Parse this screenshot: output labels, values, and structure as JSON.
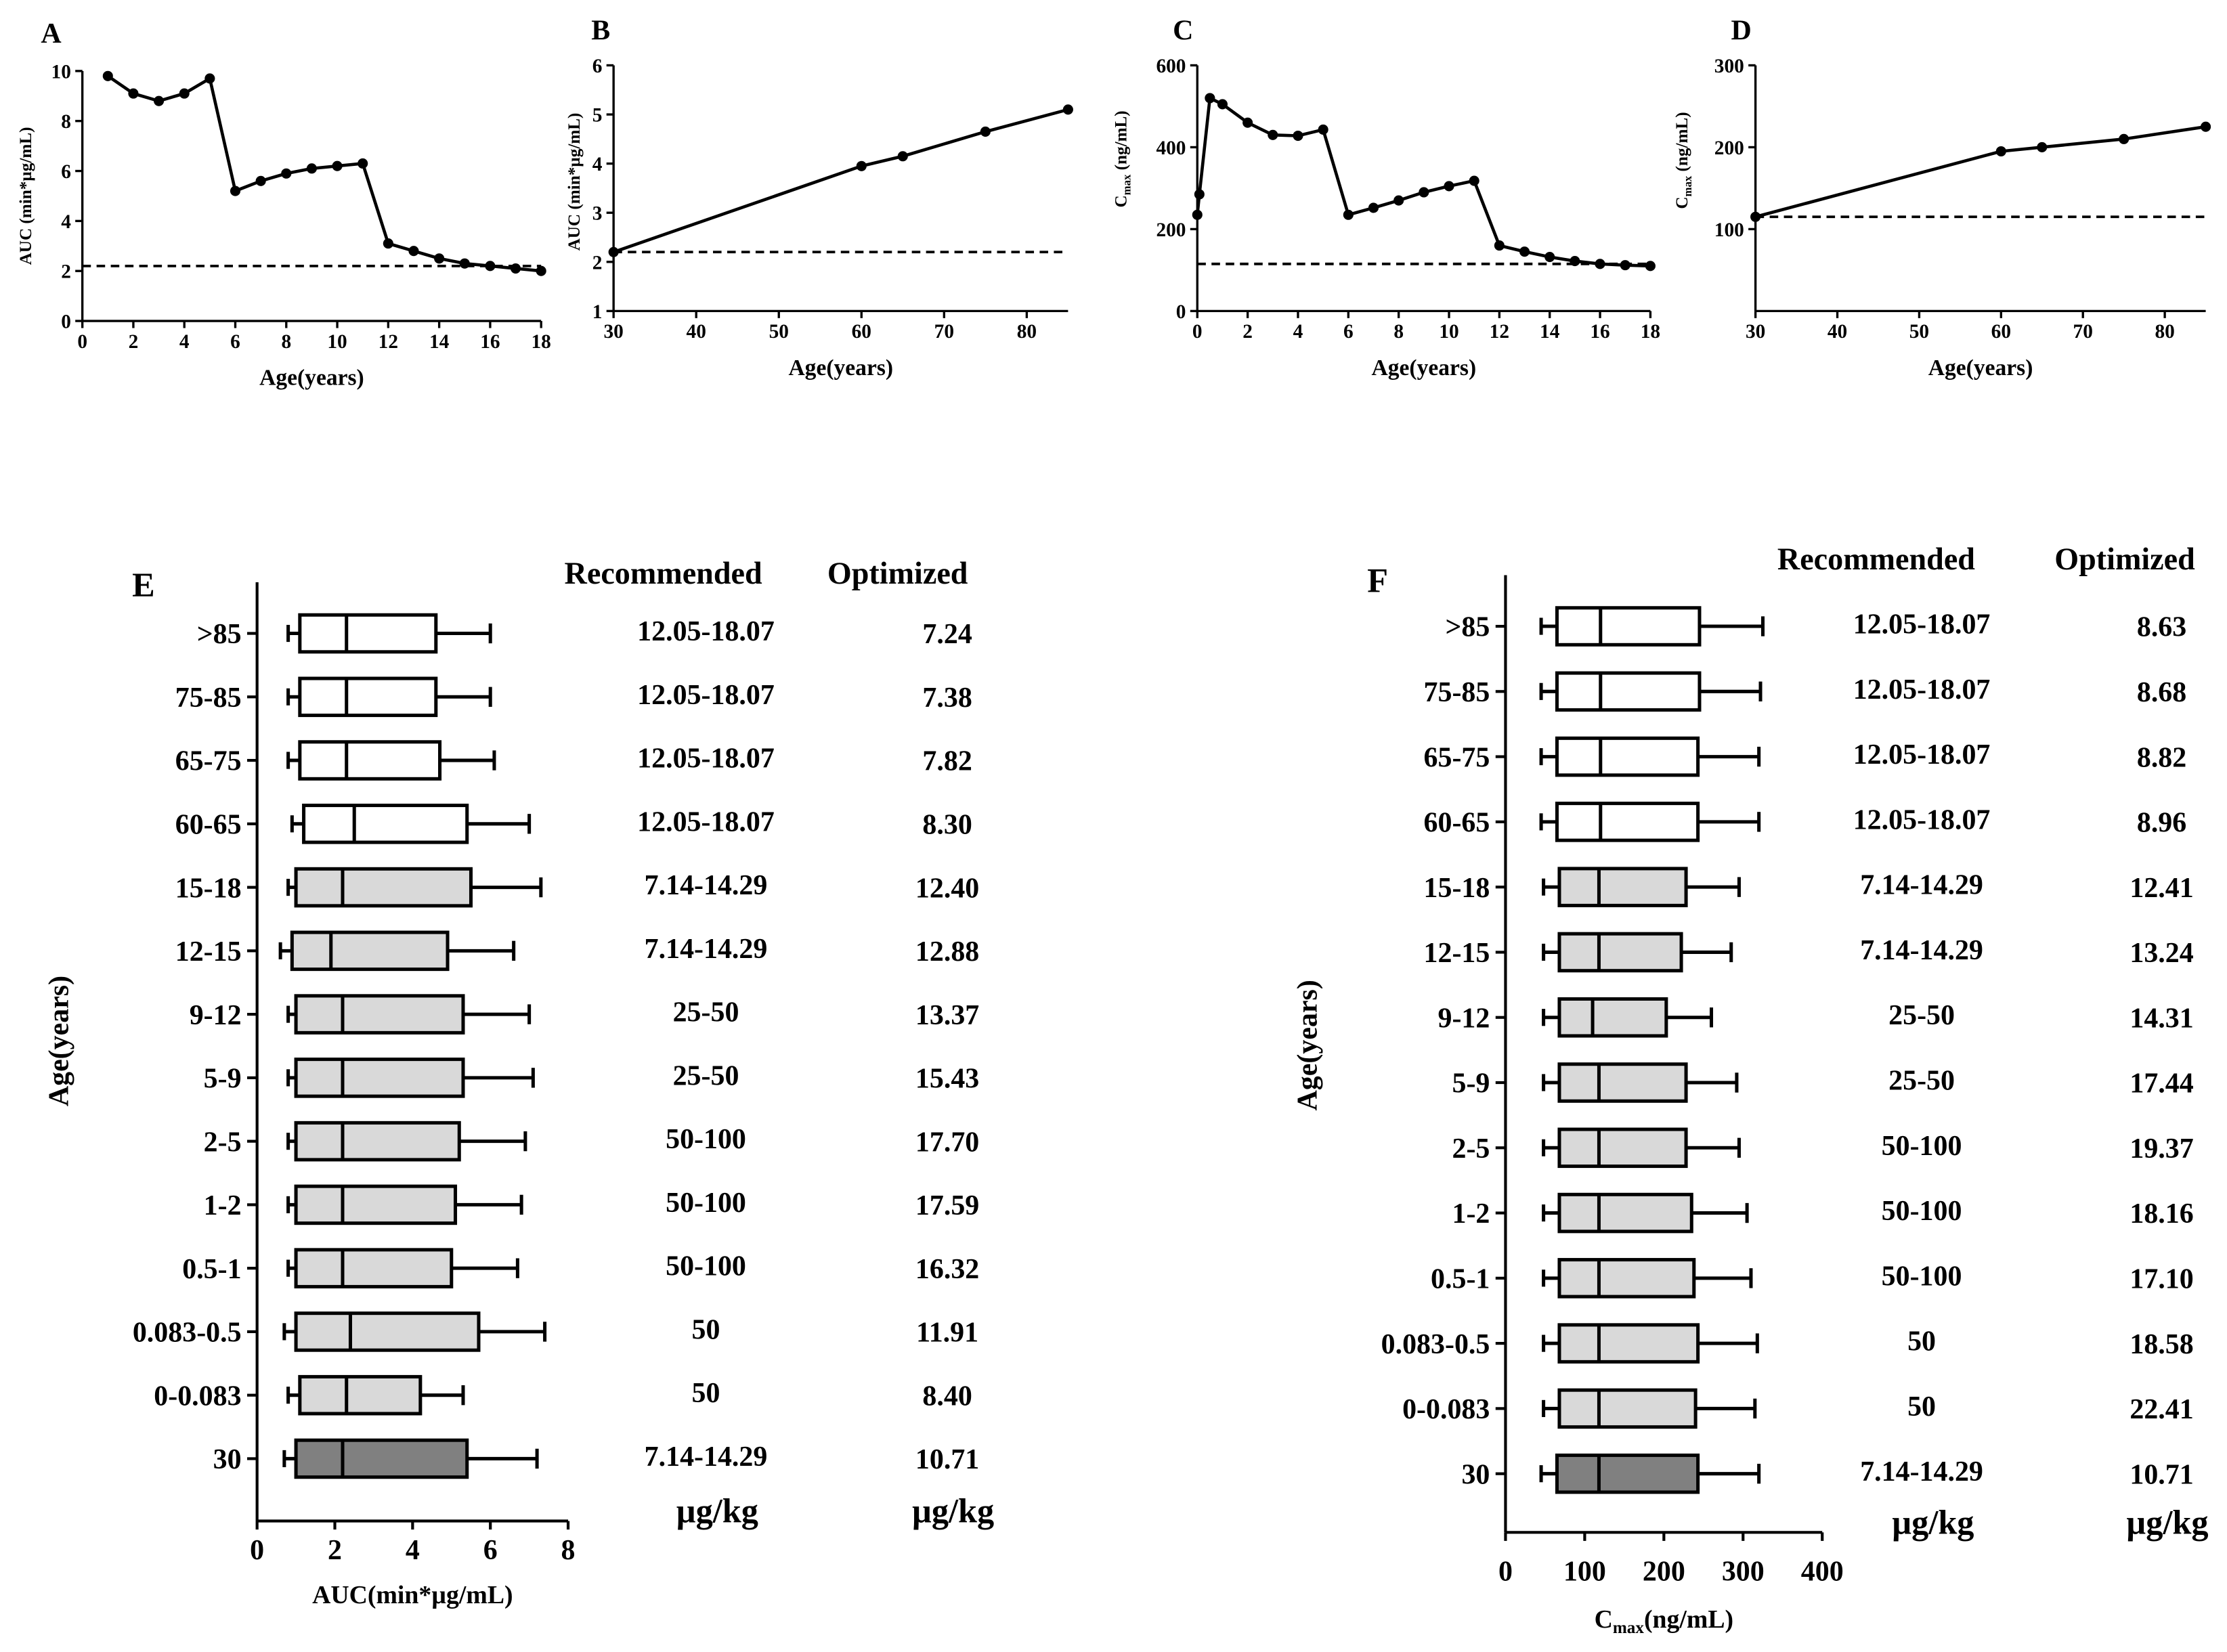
{
  "colors": {
    "ink": "#000000",
    "pediatric_box": "#d9d9d9",
    "adult_box": "#ffffff",
    "reference_box": "#808080"
  },
  "chart_data": [
    {
      "panel": "A",
      "type": "line",
      "xlabel": "Age(years)",
      "ylabel": "AUC (min*µg/mL)",
      "xlim": [
        0,
        18
      ],
      "ylim": [
        0,
        10
      ],
      "xticks": [
        0,
        2,
        4,
        6,
        8,
        10,
        12,
        14,
        16,
        18
      ],
      "yticks": [
        0,
        2,
        4,
        6,
        8,
        10
      ],
      "reference_line": 2.2,
      "x": [
        1,
        2,
        3,
        4,
        5,
        6,
        7,
        8,
        9,
        10,
        11,
        12,
        13,
        14,
        15,
        16,
        17,
        18
      ],
      "y": [
        9.8,
        9.1,
        8.8,
        9.1,
        9.7,
        5.2,
        5.6,
        5.9,
        6.1,
        6.2,
        6.3,
        3.1,
        2.8,
        2.5,
        2.3,
        2.2,
        2.1,
        2.0
      ]
    },
    {
      "panel": "B",
      "type": "line",
      "xlabel": "Age(years)",
      "ylabel": "AUC (min*µg/mL)",
      "xlim": [
        30,
        85
      ],
      "ylim": [
        1,
        6
      ],
      "xticks": [
        30,
        40,
        50,
        60,
        70,
        80
      ],
      "yticks": [
        1,
        2,
        3,
        4,
        5,
        6
      ],
      "reference_line": 2.2,
      "x": [
        30,
        60,
        65,
        75,
        85
      ],
      "y": [
        2.2,
        3.95,
        4.15,
        4.65,
        5.1
      ]
    },
    {
      "panel": "C",
      "type": "line",
      "xlabel": "Age(years)",
      "ylabel_main": "C",
      "ylabel_sub": "max",
      "ylabel_unit": " (ng/mL)",
      "xlim": [
        0,
        18
      ],
      "ylim": [
        0,
        600
      ],
      "xticks": [
        0,
        2,
        4,
        6,
        8,
        10,
        12,
        14,
        16,
        18
      ],
      "yticks": [
        0,
        200,
        400,
        600
      ],
      "reference_line": 115,
      "x": [
        0,
        0.083,
        0.5,
        1,
        2,
        3,
        4,
        5,
        6,
        7,
        8,
        9,
        10,
        11,
        12,
        13,
        14,
        15,
        16,
        17,
        18
      ],
      "y": [
        235,
        285,
        520,
        505,
        460,
        430,
        428,
        443,
        235,
        252,
        270,
        290,
        305,
        318,
        160,
        145,
        132,
        122,
        115,
        112,
        110
      ]
    },
    {
      "panel": "D",
      "type": "line",
      "xlabel": "Age(years)",
      "ylabel_main": "C",
      "ylabel_sub": "max",
      "ylabel_unit": " (ng/mL)",
      "xlim": [
        30,
        85
      ],
      "ylim": [
        0,
        300
      ],
      "xticks": [
        30,
        40,
        50,
        60,
        70,
        80
      ],
      "yticks": [
        100,
        200,
        300
      ],
      "reference_line": 115,
      "x": [
        30,
        60,
        65,
        75,
        85
      ],
      "y": [
        115,
        195,
        200,
        210,
        225
      ]
    },
    {
      "panel": "E",
      "type": "box",
      "xlabel": "AUC(min*µg/mL)",
      "ylabel": "Age(years)",
      "xlim": [
        0,
        8
      ],
      "xticks": [
        0,
        2,
        4,
        6,
        8
      ],
      "table_headers": [
        "Recommended",
        "Optimized"
      ],
      "table_units": [
        "µg/kg",
        "µg/kg"
      ],
      "rows": [
        {
          "label": ">85",
          "group": "adult",
          "min": 0.8,
          "q1": 1.1,
          "median": 2.3,
          "q3": 4.6,
          "max": 6.0,
          "recommended": "12.05-18.07",
          "optimized": "7.24"
        },
        {
          "label": "75-85",
          "group": "adult",
          "min": 0.8,
          "q1": 1.1,
          "median": 2.3,
          "q3": 4.6,
          "max": 6.0,
          "recommended": "12.05-18.07",
          "optimized": "7.38"
        },
        {
          "label": "65-75",
          "group": "adult",
          "min": 0.8,
          "q1": 1.1,
          "median": 2.3,
          "q3": 4.7,
          "max": 6.1,
          "recommended": "12.05-18.07",
          "optimized": "7.82"
        },
        {
          "label": "60-65",
          "group": "adult",
          "min": 0.9,
          "q1": 1.2,
          "median": 2.5,
          "q3": 5.4,
          "max": 7.0,
          "recommended": "12.05-18.07",
          "optimized": "8.30"
        },
        {
          "label": "15-18",
          "group": "pediatric",
          "min": 0.8,
          "q1": 1.0,
          "median": 2.2,
          "q3": 5.5,
          "max": 7.3,
          "recommended": "7.14-14.29",
          "optimized": "12.40"
        },
        {
          "label": "12-15",
          "group": "pediatric",
          "min": 0.6,
          "q1": 0.9,
          "median": 1.9,
          "q3": 4.9,
          "max": 6.6,
          "recommended": "7.14-14.29",
          "optimized": "12.88"
        },
        {
          "label": "9-12",
          "group": "pediatric",
          "min": 0.8,
          "q1": 1.0,
          "median": 2.2,
          "q3": 5.3,
          "max": 7.0,
          "recommended": "25-50",
          "optimized": "13.37"
        },
        {
          "label": "5-9",
          "group": "pediatric",
          "min": 0.8,
          "q1": 1.0,
          "median": 2.2,
          "q3": 5.3,
          "max": 7.1,
          "recommended": "25-50",
          "optimized": "15.43"
        },
        {
          "label": "2-5",
          "group": "pediatric",
          "min": 0.8,
          "q1": 1.0,
          "median": 2.2,
          "q3": 5.2,
          "max": 6.9,
          "recommended": "50-100",
          "optimized": "17.70"
        },
        {
          "label": "1-2",
          "group": "pediatric",
          "min": 0.8,
          "q1": 1.0,
          "median": 2.2,
          "q3": 5.1,
          "max": 6.8,
          "recommended": "50-100",
          "optimized": "17.59"
        },
        {
          "label": "0.5-1",
          "group": "pediatric",
          "min": 0.8,
          "q1": 1.0,
          "median": 2.2,
          "q3": 5.0,
          "max": 6.7,
          "recommended": "50-100",
          "optimized": "16.32"
        },
        {
          "label": "0.083-0.5",
          "group": "pediatric",
          "min": 0.7,
          "q1": 1.0,
          "median": 2.4,
          "q3": 5.7,
          "max": 7.4,
          "recommended": "50",
          "optimized": "11.91"
        },
        {
          "label": "0-0.083",
          "group": "pediatric",
          "min": 0.8,
          "q1": 1.1,
          "median": 2.3,
          "q3": 4.2,
          "max": 5.3,
          "recommended": "50",
          "optimized": "8.40"
        },
        {
          "label": "30",
          "group": "reference",
          "min": 0.7,
          "q1": 1.0,
          "median": 2.2,
          "q3": 5.4,
          "max": 7.2,
          "recommended": "7.14-14.29",
          "optimized": "10.71"
        }
      ]
    },
    {
      "panel": "F",
      "type": "box",
      "xlabel_main": "C",
      "xlabel_sub": "max",
      "xlabel_unit": "(ng/mL)",
      "ylabel": "Age(years)",
      "xlim": [
        0,
        400
      ],
      "xticks": [
        0,
        100,
        200,
        300,
        400
      ],
      "table_headers": [
        "Recommended",
        "Optimized"
      ],
      "table_units": [
        "µg/kg",
        "µg/kg"
      ],
      "rows": [
        {
          "label": ">85",
          "group": "adult",
          "min": 45,
          "q1": 65,
          "median": 120,
          "q3": 245,
          "max": 325,
          "recommended": "12.05-18.07",
          "optimized": "8.63"
        },
        {
          "label": "75-85",
          "group": "adult",
          "min": 45,
          "q1": 65,
          "median": 120,
          "q3": 245,
          "max": 322,
          "recommended": "12.05-18.07",
          "optimized": "8.68"
        },
        {
          "label": "65-75",
          "group": "adult",
          "min": 45,
          "q1": 65,
          "median": 120,
          "q3": 243,
          "max": 320,
          "recommended": "12.05-18.07",
          "optimized": "8.82"
        },
        {
          "label": "60-65",
          "group": "adult",
          "min": 45,
          "q1": 65,
          "median": 120,
          "q3": 243,
          "max": 320,
          "recommended": "12.05-18.07",
          "optimized": "8.96"
        },
        {
          "label": "15-18",
          "group": "pediatric",
          "min": 48,
          "q1": 68,
          "median": 118,
          "q3": 228,
          "max": 295,
          "recommended": "7.14-14.29",
          "optimized": "12.41"
        },
        {
          "label": "12-15",
          "group": "pediatric",
          "min": 48,
          "q1": 68,
          "median": 118,
          "q3": 222,
          "max": 285,
          "recommended": "7.14-14.29",
          "optimized": "13.24"
        },
        {
          "label": "9-12",
          "group": "pediatric",
          "min": 48,
          "q1": 68,
          "median": 110,
          "q3": 203,
          "max": 260,
          "recommended": "25-50",
          "optimized": "14.31"
        },
        {
          "label": "5-9",
          "group": "pediatric",
          "min": 48,
          "q1": 68,
          "median": 118,
          "q3": 228,
          "max": 292,
          "recommended": "25-50",
          "optimized": "17.44"
        },
        {
          "label": "2-5",
          "group": "pediatric",
          "min": 48,
          "q1": 68,
          "median": 118,
          "q3": 228,
          "max": 295,
          "recommended": "50-100",
          "optimized": "19.37"
        },
        {
          "label": "1-2",
          "group": "pediatric",
          "min": 48,
          "q1": 68,
          "median": 118,
          "q3": 235,
          "max": 305,
          "recommended": "50-100",
          "optimized": "18.16"
        },
        {
          "label": "0.5-1",
          "group": "pediatric",
          "min": 48,
          "q1": 68,
          "median": 118,
          "q3": 238,
          "max": 310,
          "recommended": "50-100",
          "optimized": "17.10"
        },
        {
          "label": "0.083-0.5",
          "group": "pediatric",
          "min": 48,
          "q1": 68,
          "median": 118,
          "q3": 243,
          "max": 318,
          "recommended": "50",
          "optimized": "18.58"
        },
        {
          "label": "0-0.083",
          "group": "pediatric",
          "min": 48,
          "q1": 68,
          "median": 118,
          "q3": 240,
          "max": 315,
          "recommended": "50",
          "optimized": "22.41"
        },
        {
          "label": "30",
          "group": "reference",
          "min": 45,
          "q1": 65,
          "median": 118,
          "q3": 243,
          "max": 320,
          "recommended": "7.14-14.29",
          "optimized": "10.71"
        }
      ]
    }
  ]
}
